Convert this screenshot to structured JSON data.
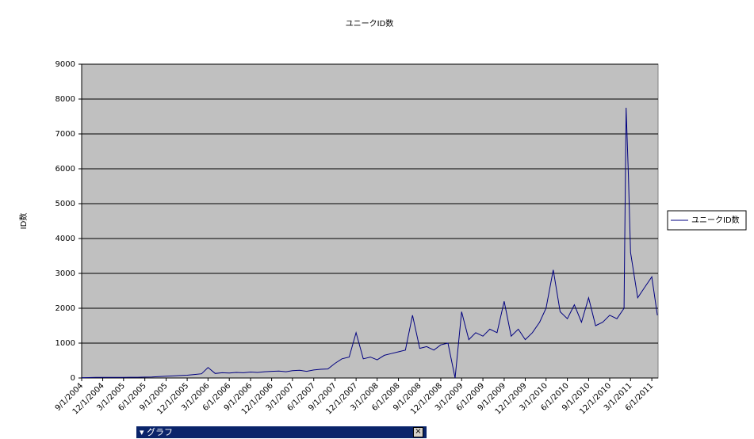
{
  "chart_data": {
    "type": "line",
    "title": "ユニークID数",
    "y_label": "ID数",
    "x": [
      "9/1/2004",
      "10/1/2004",
      "11/1/2004",
      "12/1/2004",
      "1/1/2005",
      "2/1/2005",
      "3/1/2005",
      "4/1/2005",
      "5/1/2005",
      "6/1/2005",
      "7/1/2005",
      "8/1/2005",
      "9/1/2005",
      "10/1/2005",
      "11/1/2005",
      "12/1/2005",
      "1/1/2006",
      "2/1/2006",
      "3/1/2006",
      "4/1/2006",
      "5/1/2006",
      "6/1/2006",
      "7/1/2006",
      "8/1/2006",
      "9/1/2006",
      "10/1/2006",
      "11/1/2006",
      "12/1/2006",
      "1/1/2007",
      "2/1/2007",
      "3/1/2007",
      "4/1/2007",
      "5/1/2007",
      "6/1/2007",
      "7/1/2007",
      "8/1/2007",
      "9/1/2007",
      "10/1/2007",
      "11/1/2007",
      "12/1/2007",
      "1/1/2008",
      "2/1/2008",
      "3/1/2008",
      "4/1/2008",
      "5/1/2008",
      "6/1/2008",
      "7/1/2008",
      "8/1/2008",
      "9/1/2008",
      "10/1/2008",
      "11/1/2008",
      "12/1/2008",
      "1/1/2009",
      "2/1/2009",
      "3/1/2009",
      "4/1/2009",
      "5/1/2009",
      "6/1/2009",
      "7/1/2009",
      "8/1/2009",
      "9/1/2009",
      "10/1/2009",
      "11/1/2009",
      "12/1/2009",
      "1/1/2010",
      "2/1/2010",
      "3/1/2010",
      "4/1/2010",
      "5/1/2010",
      "6/1/2010",
      "7/1/2010",
      "8/1/2010",
      "9/1/2010",
      "10/1/2010",
      "11/1/2010",
      "12/1/2010",
      "1/1/2011",
      "2/1/2011",
      "2/10/2011",
      "2/20/2011",
      "3/1/2011",
      "4/1/2011",
      "5/1/2011",
      "6/1/2011",
      "6/25/2011"
    ],
    "series": [
      {
        "name": "ユニークID数",
        "color": "#000080",
        "values": [
          10,
          12,
          15,
          15,
          15,
          15,
          18,
          20,
          20,
          25,
          30,
          40,
          50,
          60,
          70,
          80,
          100,
          120,
          300,
          130,
          150,
          140,
          160,
          150,
          170,
          160,
          180,
          190,
          200,
          180,
          210,
          220,
          190,
          230,
          250,
          260,
          420,
          550,
          600,
          1300,
          550,
          600,
          520,
          650,
          700,
          750,
          800,
          1800,
          850,
          900,
          800,
          950,
          1000,
          0,
          1900,
          1100,
          1300,
          1200,
          1400,
          1300,
          2200,
          1200,
          1400,
          1100,
          1300,
          1600,
          2000,
          3100,
          1900,
          1700,
          2100,
          1600,
          2300,
          1500,
          1600,
          1800,
          1700,
          2000,
          7750,
          5800,
          3600,
          2300,
          2600,
          2900,
          1800
        ]
      }
    ],
    "xlim": [
      "9/1/2004",
      "6/28/2011"
    ],
    "xticks": [
      "9/1/2004",
      "12/1/2004",
      "3/1/2005",
      "6/1/2005",
      "9/1/2005",
      "12/1/2005",
      "3/1/2006",
      "6/1/2006",
      "9/1/2006",
      "12/1/2006",
      "3/1/2007",
      "6/1/2007",
      "9/1/2007",
      "12/1/2007",
      "3/1/2008",
      "6/1/2008",
      "9/1/2008",
      "12/1/2008",
      "3/1/2009",
      "6/1/2009",
      "9/1/2009",
      "12/1/2009",
      "3/1/2010",
      "6/1/2010",
      "9/1/2010",
      "12/1/2010",
      "3/1/2011",
      "6/1/2011"
    ],
    "ylim": [
      0,
      9000
    ],
    "yticks": [
      0,
      1000,
      2000,
      3000,
      4000,
      5000,
      6000,
      7000,
      8000,
      9000
    ],
    "grid": true,
    "legend": "right",
    "plot_background": "#c0c0c0"
  },
  "toolbar": {
    "title": "グラフ"
  }
}
